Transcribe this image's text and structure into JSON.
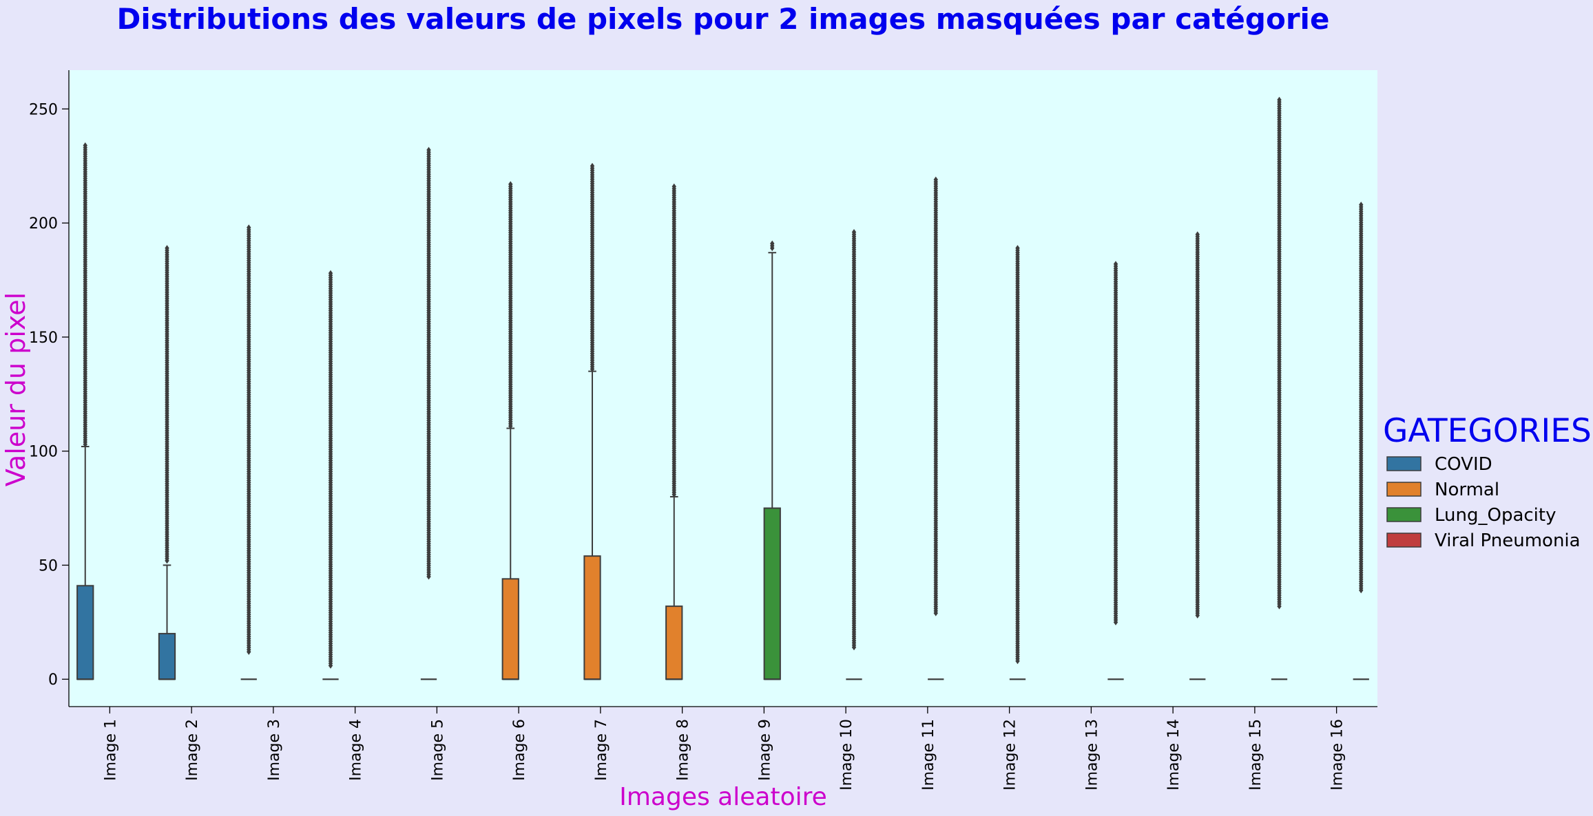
{
  "chart_data": {
    "type": "boxplot",
    "title": "Distributions des valeurs de pixels pour 2 images masquées par catégorie",
    "xlabel": "Images aleatoire",
    "ylabel": "Valeur du pixel",
    "ylim": [
      -12,
      267
    ],
    "yticks": [
      0,
      50,
      100,
      150,
      200,
      250
    ],
    "grid": false,
    "legend": {
      "title": "GATEGORIES",
      "placement": "right",
      "entries": [
        {
          "name": "COVID",
          "color": "#3274a1"
        },
        {
          "name": "Normal",
          "color": "#e1812c"
        },
        {
          "name": "Lung_Opacity",
          "color": "#3a923a"
        },
        {
          "name": "Viral Pneumonia",
          "color": "#c03d3e"
        }
      ]
    },
    "categories": [
      "Image 1",
      "Image 2",
      "Image 3",
      "Image 4",
      "Image 5",
      "Image 6",
      "Image 7",
      "Image 8",
      "Image 9",
      "Image 10",
      "Image 11",
      "Image 12",
      "Image 13",
      "Image 14",
      "Image 15",
      "Image 16"
    ],
    "boxes": [
      {
        "category": "Image 1",
        "series": "COVID",
        "q1": 0,
        "median": 0,
        "q3": 41,
        "whisker_low": 0,
        "whisker_high": 102,
        "outlier_min": 103,
        "outlier_max": 234
      },
      {
        "category": "Image 2",
        "series": "COVID",
        "q1": 0,
        "median": 0,
        "q3": 20,
        "whisker_low": 0,
        "whisker_high": 50,
        "outlier_min": 52,
        "outlier_max": 189
      },
      {
        "category": "Image 3",
        "series": "COVID",
        "q1": 0,
        "median": 0,
        "q3": 0,
        "whisker_low": 0,
        "whisker_high": 0,
        "outlier_min": 12,
        "outlier_max": 198
      },
      {
        "category": "Image 4",
        "series": "COVID",
        "q1": 0,
        "median": 0,
        "q3": 0,
        "whisker_low": 0,
        "whisker_high": 0,
        "outlier_min": 6,
        "outlier_max": 178
      },
      {
        "category": "Image 5",
        "series": "Normal",
        "q1": 0,
        "median": 0,
        "q3": 0,
        "whisker_low": 0,
        "whisker_high": 0,
        "outlier_min": 45,
        "outlier_max": 232
      },
      {
        "category": "Image 6",
        "series": "Normal",
        "q1": 0,
        "median": 0,
        "q3": 44,
        "whisker_low": 0,
        "whisker_high": 110,
        "outlier_min": 111,
        "outlier_max": 217
      },
      {
        "category": "Image 7",
        "series": "Normal",
        "q1": 0,
        "median": 0,
        "q3": 54,
        "whisker_low": 0,
        "whisker_high": 135,
        "outlier_min": 136,
        "outlier_max": 225
      },
      {
        "category": "Image 8",
        "series": "Normal",
        "q1": 0,
        "median": 0,
        "q3": 32,
        "whisker_low": 0,
        "whisker_high": 80,
        "outlier_min": 81,
        "outlier_max": 216
      },
      {
        "category": "Image 9",
        "series": "Lung_Opacity",
        "q1": 0,
        "median": 0,
        "q3": 75,
        "whisker_low": 0,
        "whisker_high": 187,
        "outlier_min": 189,
        "outlier_max": 191
      },
      {
        "category": "Image 10",
        "series": "Lung_Opacity",
        "q1": 0,
        "median": 0,
        "q3": 0,
        "whisker_low": 0,
        "whisker_high": 0,
        "outlier_min": 14,
        "outlier_max": 196
      },
      {
        "category": "Image 11",
        "series": "Lung_Opacity",
        "q1": 0,
        "median": 0,
        "q3": 0,
        "whisker_low": 0,
        "whisker_high": 0,
        "outlier_min": 29,
        "outlier_max": 219
      },
      {
        "category": "Image 12",
        "series": "Lung_Opacity",
        "q1": 0,
        "median": 0,
        "q3": 0,
        "whisker_low": 0,
        "whisker_high": 0,
        "outlier_min": 8,
        "outlier_max": 189
      },
      {
        "category": "Image 13",
        "series": "Viral Pneumonia",
        "q1": 0,
        "median": 0,
        "q3": 0,
        "whisker_low": 0,
        "whisker_high": 0,
        "outlier_min": 25,
        "outlier_max": 182
      },
      {
        "category": "Image 14",
        "series": "Viral Pneumonia",
        "q1": 0,
        "median": 0,
        "q3": 0,
        "whisker_low": 0,
        "whisker_high": 0,
        "outlier_min": 28,
        "outlier_max": 195
      },
      {
        "category": "Image 15",
        "series": "Viral Pneumonia",
        "q1": 0,
        "median": 0,
        "q3": 0,
        "whisker_low": 0,
        "whisker_high": 0,
        "outlier_min": 32,
        "outlier_max": 254
      },
      {
        "category": "Image 16",
        "series": "Viral Pneumonia",
        "q1": 0,
        "median": 0,
        "q3": 0,
        "whisker_low": 0,
        "whisker_high": 0,
        "outlier_min": 39,
        "outlier_max": 208
      }
    ]
  }
}
